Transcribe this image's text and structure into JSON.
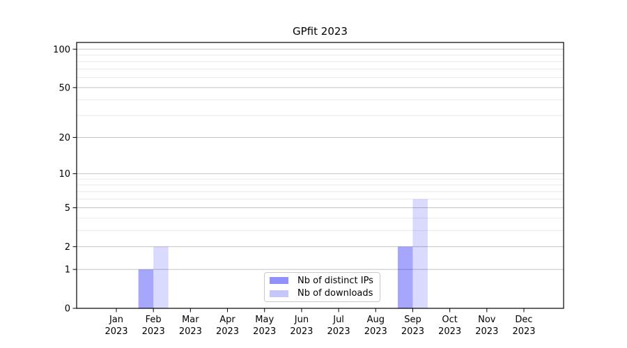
{
  "chart_data": {
    "type": "bar",
    "title": "GPfit 2023",
    "year": "2023",
    "months": [
      "Jan",
      "Feb",
      "Mar",
      "Apr",
      "May",
      "Jun",
      "Jul",
      "Aug",
      "Sep",
      "Oct",
      "Nov",
      "Dec"
    ],
    "series": [
      {
        "name": "Nb of distinct IPs",
        "color": "#0000f5",
        "opacity": 0.35,
        "values": [
          0,
          1,
          0,
          0,
          0,
          0,
          0,
          0,
          2,
          0,
          0,
          0
        ]
      },
      {
        "name": "Nb of downloads",
        "color": "#0000f5",
        "opacity": 0.145,
        "values": [
          0,
          2,
          0,
          0,
          0,
          0,
          0,
          0,
          6,
          0,
          0,
          0
        ]
      }
    ],
    "y_axis": {
      "scale": "log1p",
      "major_ticks": [
        0,
        1,
        2,
        5,
        10,
        20,
        50,
        100
      ],
      "minor_ticks": [
        3,
        4,
        6,
        7,
        8,
        9,
        30,
        40,
        60,
        70,
        80,
        90
      ],
      "top_value": 113
    },
    "x_axis": {
      "tick_label_line2": "2023"
    },
    "grid": {
      "major_color": "#c3c3c3",
      "minor_color": "#e9e9e9"
    },
    "spine_color": "#000000",
    "background": "#ffffff",
    "legend_position": "lower center"
  }
}
